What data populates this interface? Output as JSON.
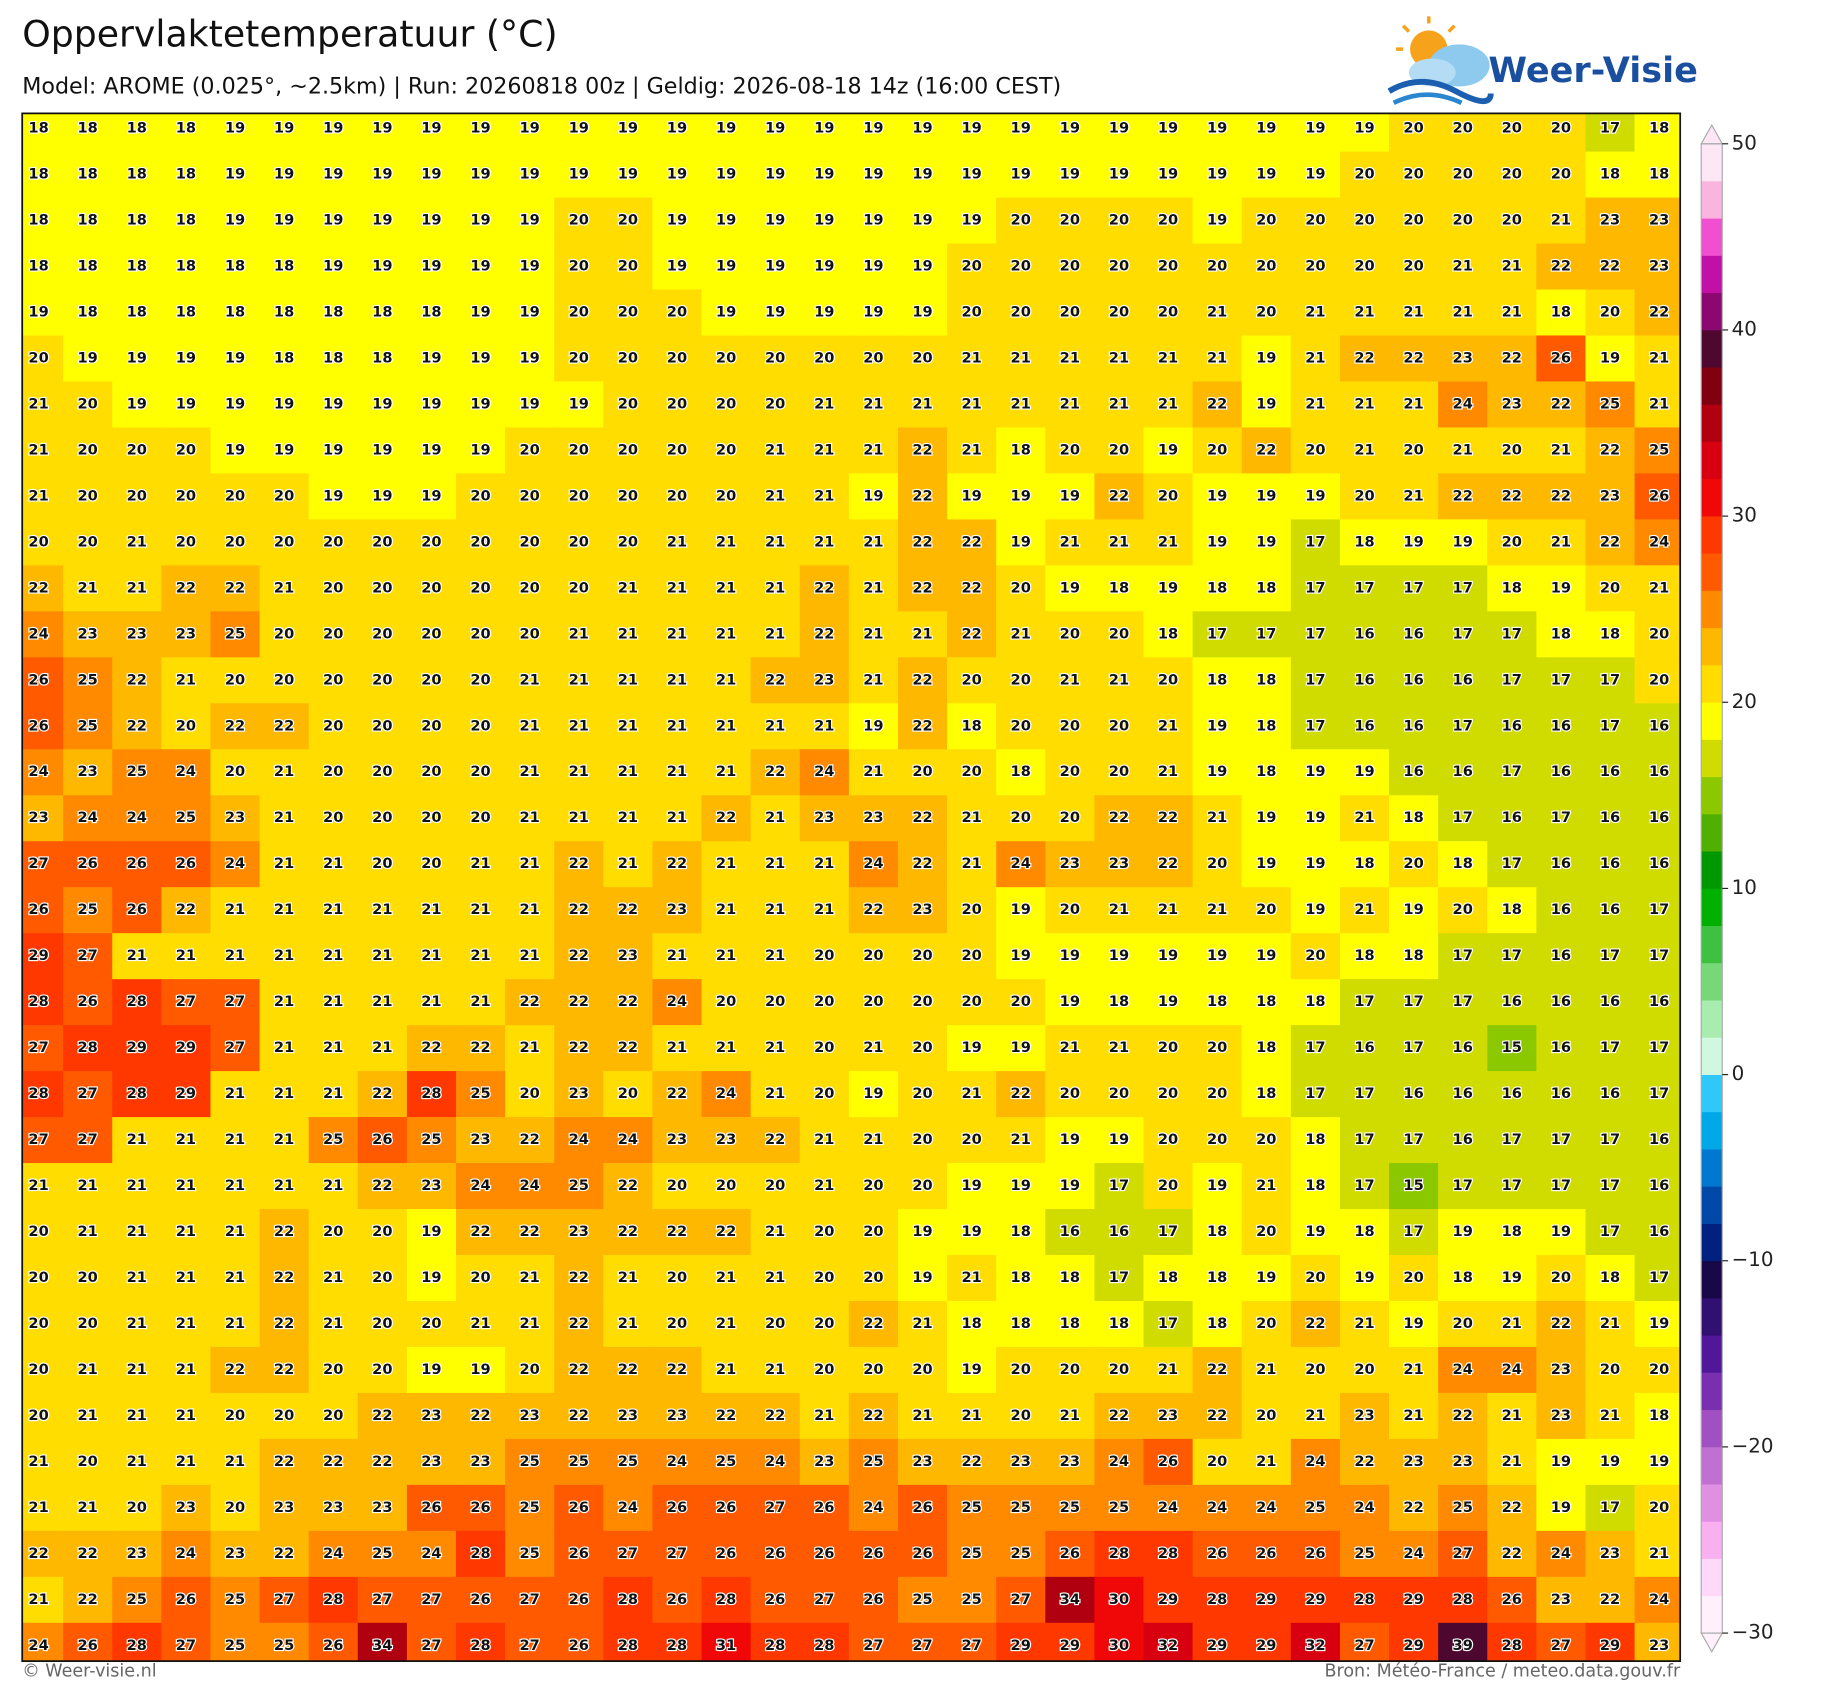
{
  "map": {
    "title": "Oppervlaktetemperatuur (°C)",
    "subtitle": "Model: AROME (0.025°, ~2.5km)  |  Run: 20260818 00z  |  Geldig: 2026-08-18 14z (16:00 CEST)",
    "logo": "Weer-Visie",
    "footer_left": "© Weer-visie.nl",
    "footer_right": "Bron: Météo-France / meteo.data.gouv.fr",
    "colorbar": {
      "range": [
        -30,
        50
      ],
      "ticks": [
        {
          "value": -30,
          "label": "−30"
        },
        {
          "value": -20,
          "label": "−20"
        },
        {
          "value": -10,
          "label": "−10"
        },
        0,
        10,
        20,
        30,
        40,
        50
      ],
      "colors": [
        "#fff0fc",
        "#ffd8fa",
        "#f8b0f0",
        "#e090e0",
        "#c070d0",
        "#a050c0",
        "#7830b0",
        "#501898",
        "#301070",
        "#180848",
        "#002080",
        "#0048a8",
        "#0078d0",
        "#00a8e8",
        "#30c8f8",
        "#d0f8e0",
        "#a8ecb0",
        "#78d878",
        "#40c040",
        "#00b000",
        "#009800",
        "#50b000",
        "#8cc800",
        "#d0dc00",
        "#ffff00",
        "#ffdd00",
        "#ffb800",
        "#ff8a00",
        "#ff5a00",
        "#ff3800",
        "#f00808",
        "#d80010",
        "#b00010",
        "#800010",
        "#4e0830",
        "#8a0870",
        "#c010a8",
        "#f050d0",
        "#f9b4e0",
        "#fde6f6"
      ]
    },
    "values": [
      [
        18,
        18,
        18,
        18,
        19,
        19,
        19,
        19,
        19,
        19,
        19,
        19,
        19,
        19,
        19,
        19,
        19,
        19,
        19,
        19,
        19,
        19,
        19,
        19,
        19,
        19,
        19,
        19,
        20,
        20,
        20,
        20,
        17,
        18
      ],
      [
        18,
        18,
        18,
        18,
        19,
        19,
        19,
        19,
        19,
        19,
        19,
        19,
        19,
        19,
        19,
        19,
        19,
        19,
        19,
        19,
        19,
        19,
        19,
        19,
        19,
        19,
        19,
        20,
        20,
        20,
        20,
        20,
        18,
        18
      ],
      [
        18,
        18,
        18,
        18,
        19,
        19,
        19,
        19,
        19,
        19,
        19,
        20,
        20,
        19,
        19,
        19,
        19,
        19,
        19,
        19,
        20,
        20,
        20,
        20,
        19,
        20,
        20,
        20,
        20,
        20,
        20,
        21,
        23,
        23
      ],
      [
        18,
        18,
        18,
        18,
        18,
        18,
        19,
        19,
        19,
        19,
        19,
        20,
        20,
        19,
        19,
        19,
        19,
        19,
        19,
        20,
        20,
        20,
        20,
        20,
        20,
        20,
        20,
        20,
        20,
        21,
        21,
        22,
        22,
        23
      ],
      [
        19,
        18,
        18,
        18,
        18,
        18,
        18,
        18,
        18,
        19,
        19,
        20,
        20,
        20,
        19,
        19,
        19,
        19,
        19,
        20,
        20,
        20,
        20,
        20,
        21,
        20,
        21,
        21,
        21,
        21,
        21,
        18,
        20,
        22
      ],
      [
        20,
        19,
        19,
        19,
        19,
        18,
        18,
        18,
        19,
        19,
        19,
        20,
        20,
        20,
        20,
        20,
        20,
        20,
        20,
        21,
        21,
        21,
        21,
        21,
        21,
        19,
        21,
        22,
        22,
        23,
        22,
        26,
        19,
        21
      ],
      [
        21,
        20,
        19,
        19,
        19,
        19,
        19,
        19,
        19,
        19,
        19,
        19,
        20,
        20,
        20,
        20,
        21,
        21,
        21,
        21,
        21,
        21,
        21,
        21,
        22,
        19,
        21,
        21,
        21,
        24,
        23,
        22,
        25,
        21
      ],
      [
        21,
        20,
        20,
        20,
        19,
        19,
        19,
        19,
        19,
        19,
        20,
        20,
        20,
        20,
        20,
        21,
        21,
        21,
        22,
        21,
        18,
        20,
        20,
        19,
        20,
        22,
        20,
        21,
        20,
        21,
        20,
        21,
        22,
        25
      ],
      [
        21,
        20,
        20,
        20,
        20,
        20,
        19,
        19,
        19,
        20,
        20,
        20,
        20,
        20,
        20,
        21,
        21,
        19,
        22,
        19,
        19,
        19,
        22,
        20,
        19,
        19,
        19,
        20,
        21,
        22,
        22,
        22,
        23,
        26
      ],
      [
        20,
        20,
        21,
        20,
        20,
        20,
        20,
        20,
        20,
        20,
        20,
        20,
        20,
        21,
        21,
        21,
        21,
        21,
        22,
        22,
        19,
        21,
        21,
        21,
        19,
        19,
        17,
        18,
        19,
        19,
        20,
        21,
        22,
        24
      ],
      [
        22,
        21,
        21,
        22,
        22,
        21,
        20,
        20,
        20,
        20,
        20,
        20,
        21,
        21,
        21,
        21,
        22,
        21,
        22,
        22,
        20,
        19,
        18,
        19,
        18,
        18,
        17,
        17,
        17,
        17,
        18,
        19,
        20,
        21
      ],
      [
        24,
        23,
        23,
        23,
        25,
        20,
        20,
        20,
        20,
        20,
        20,
        21,
        21,
        21,
        21,
        21,
        22,
        21,
        21,
        22,
        21,
        20,
        20,
        18,
        17,
        17,
        17,
        16,
        16,
        17,
        17,
        18,
        18,
        20
      ],
      [
        26,
        25,
        22,
        21,
        20,
        20,
        20,
        20,
        20,
        20,
        21,
        21,
        21,
        21,
        21,
        22,
        23,
        21,
        22,
        20,
        20,
        21,
        21,
        20,
        18,
        18,
        17,
        16,
        16,
        16,
        17,
        17,
        17,
        20
      ],
      [
        26,
        25,
        22,
        20,
        22,
        22,
        20,
        20,
        20,
        20,
        21,
        21,
        21,
        21,
        21,
        21,
        21,
        19,
        22,
        18,
        20,
        20,
        20,
        21,
        19,
        18,
        17,
        16,
        16,
        17,
        16,
        16,
        17,
        16
      ],
      [
        24,
        23,
        25,
        24,
        20,
        21,
        20,
        20,
        20,
        20,
        21,
        21,
        21,
        21,
        21,
        22,
        24,
        21,
        20,
        20,
        18,
        20,
        20,
        21,
        19,
        18,
        19,
        19,
        16,
        16,
        17,
        16,
        16,
        16
      ],
      [
        23,
        24,
        24,
        25,
        23,
        21,
        20,
        20,
        20,
        20,
        21,
        21,
        21,
        21,
        22,
        21,
        23,
        23,
        22,
        21,
        20,
        20,
        22,
        22,
        21,
        19,
        19,
        21,
        18,
        17,
        16,
        17,
        16,
        16
      ],
      [
        27,
        26,
        26,
        26,
        24,
        21,
        21,
        20,
        20,
        21,
        21,
        22,
        21,
        22,
        21,
        21,
        21,
        24,
        22,
        21,
        24,
        23,
        23,
        22,
        20,
        19,
        19,
        18,
        20,
        18,
        17,
        16,
        16,
        16
      ],
      [
        26,
        25,
        26,
        22,
        21,
        21,
        21,
        21,
        21,
        21,
        21,
        22,
        22,
        23,
        21,
        21,
        21,
        22,
        23,
        20,
        19,
        20,
        21,
        21,
        21,
        20,
        19,
        21,
        19,
        20,
        18,
        16,
        16,
        17
      ],
      [
        29,
        27,
        21,
        21,
        21,
        21,
        21,
        21,
        21,
        21,
        21,
        22,
        23,
        21,
        21,
        21,
        20,
        20,
        20,
        20,
        19,
        19,
        19,
        19,
        19,
        19,
        20,
        18,
        18,
        17,
        17,
        16,
        17,
        17
      ],
      [
        28,
        26,
        28,
        27,
        27,
        21,
        21,
        21,
        21,
        21,
        22,
        22,
        22,
        24,
        20,
        20,
        20,
        20,
        20,
        20,
        20,
        19,
        18,
        19,
        18,
        18,
        18,
        17,
        17,
        17,
        16,
        16,
        16,
        16
      ],
      [
        27,
        28,
        29,
        29,
        27,
        21,
        21,
        21,
        22,
        22,
        21,
        22,
        22,
        21,
        21,
        21,
        20,
        21,
        20,
        19,
        19,
        21,
        21,
        20,
        20,
        18,
        17,
        16,
        17,
        16,
        15,
        16,
        17,
        17
      ],
      [
        28,
        27,
        28,
        29,
        21,
        21,
        21,
        22,
        28,
        25,
        20,
        23,
        20,
        22,
        24,
        21,
        20,
        19,
        20,
        21,
        22,
        20,
        20,
        20,
        20,
        18,
        17,
        17,
        16,
        16,
        16,
        16,
        16,
        17
      ],
      [
        27,
        27,
        21,
        21,
        21,
        21,
        25,
        26,
        25,
        23,
        22,
        24,
        24,
        23,
        23,
        22,
        21,
        21,
        20,
        20,
        21,
        19,
        19,
        20,
        20,
        20,
        18,
        17,
        17,
        16,
        17,
        17,
        17,
        16
      ],
      [
        21,
        21,
        21,
        21,
        21,
        21,
        21,
        22,
        23,
        24,
        24,
        25,
        22,
        20,
        20,
        20,
        21,
        20,
        20,
        19,
        19,
        19,
        17,
        20,
        19,
        21,
        18,
        17,
        15,
        17,
        17,
        17,
        17,
        16
      ],
      [
        20,
        21,
        21,
        21,
        21,
        22,
        20,
        20,
        19,
        22,
        22,
        23,
        22,
        22,
        22,
        21,
        20,
        20,
        19,
        19,
        18,
        16,
        16,
        17,
        18,
        20,
        19,
        18,
        17,
        19,
        18,
        19,
        17,
        16
      ],
      [
        20,
        20,
        21,
        21,
        21,
        22,
        21,
        20,
        19,
        20,
        21,
        22,
        21,
        20,
        21,
        21,
        20,
        20,
        19,
        21,
        18,
        18,
        17,
        18,
        18,
        19,
        20,
        19,
        20,
        18,
        19,
        20,
        18,
        17
      ],
      [
        20,
        20,
        21,
        21,
        21,
        22,
        21,
        20,
        20,
        21,
        21,
        22,
        21,
        20,
        21,
        20,
        20,
        22,
        21,
        18,
        18,
        18,
        18,
        17,
        18,
        20,
        22,
        21,
        19,
        20,
        21,
        22,
        21,
        19
      ],
      [
        20,
        21,
        21,
        21,
        22,
        22,
        20,
        20,
        19,
        19,
        20,
        22,
        22,
        22,
        21,
        21,
        20,
        20,
        20,
        19,
        20,
        20,
        20,
        21,
        22,
        21,
        20,
        20,
        21,
        24,
        24,
        23,
        20,
        20
      ],
      [
        20,
        21,
        21,
        21,
        20,
        20,
        20,
        22,
        23,
        22,
        23,
        22,
        23,
        23,
        22,
        22,
        21,
        22,
        21,
        21,
        20,
        21,
        22,
        23,
        22,
        20,
        21,
        23,
        21,
        22,
        21,
        23,
        21,
        18
      ],
      [
        21,
        20,
        21,
        21,
        21,
        22,
        22,
        22,
        23,
        23,
        25,
        25,
        25,
        24,
        25,
        24,
        23,
        25,
        23,
        22,
        23,
        23,
        24,
        26,
        20,
        21,
        24,
        22,
        23,
        23,
        21,
        19,
        19,
        19
      ],
      [
        21,
        21,
        20,
        23,
        20,
        23,
        23,
        23,
        26,
        26,
        25,
        26,
        24,
        26,
        26,
        27,
        26,
        24,
        26,
        25,
        25,
        25,
        25,
        24,
        24,
        24,
        25,
        24,
        22,
        25,
        22,
        19,
        17,
        20
      ],
      [
        22,
        22,
        23,
        24,
        23,
        22,
        24,
        25,
        24,
        28,
        25,
        26,
        27,
        27,
        26,
        26,
        26,
        26,
        26,
        25,
        25,
        26,
        28,
        28,
        26,
        26,
        26,
        25,
        24,
        27,
        22,
        24,
        23,
        21
      ],
      [
        21,
        22,
        25,
        26,
        25,
        27,
        28,
        27,
        27,
        26,
        27,
        26,
        28,
        26,
        28,
        26,
        27,
        26,
        25,
        25,
        27,
        34,
        30,
        29,
        28,
        29,
        29,
        28,
        29,
        28,
        26,
        23,
        22,
        24
      ],
      [
        24,
        26,
        28,
        27,
        25,
        25,
        26,
        34,
        27,
        28,
        27,
        26,
        28,
        28,
        31,
        28,
        28,
        27,
        27,
        27,
        29,
        29,
        30,
        32,
        29,
        29,
        32,
        27,
        29,
        39,
        28,
        27,
        29,
        23
      ]
    ]
  }
}
